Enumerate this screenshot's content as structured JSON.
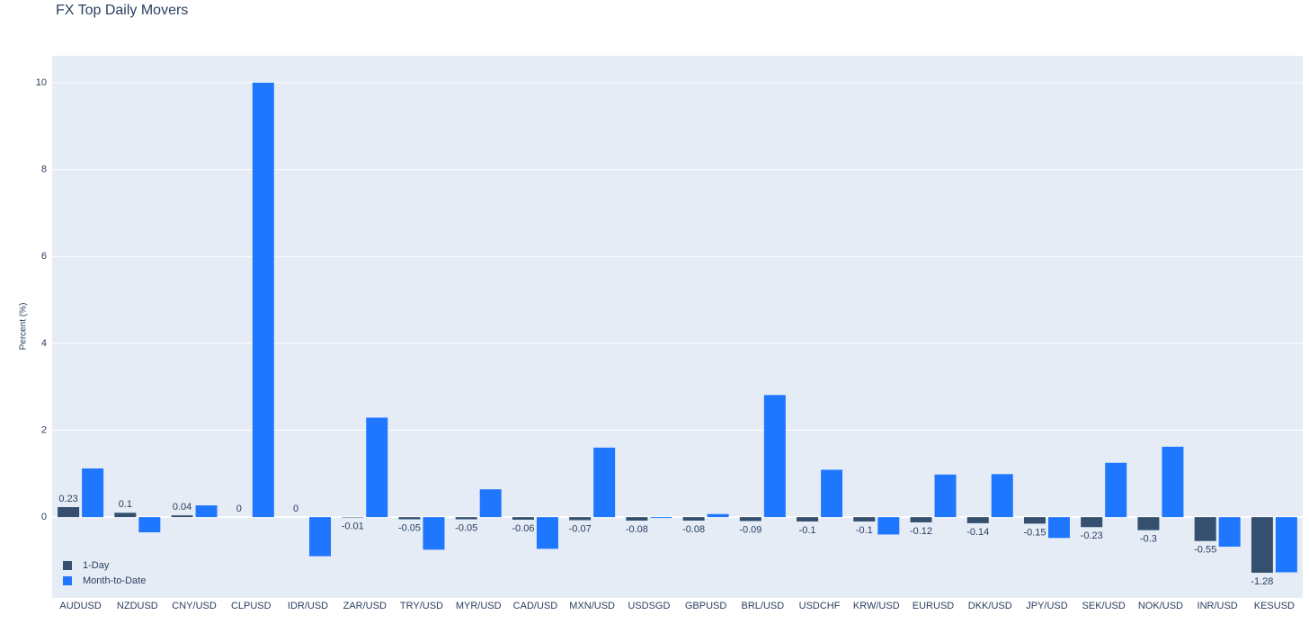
{
  "chart_data": {
    "type": "bar",
    "title": "FX Top Daily Movers",
    "y_label": "Percent (%)",
    "categories": [
      "AUDUSD",
      "NZDUSD",
      "CNY/USD",
      "CLPUSD",
      "IDR/USD",
      "ZAR/USD",
      "TRY/USD",
      "MYR/USD",
      "CAD/USD",
      "MXN/USD",
      "USDSGD",
      "GBPUSD",
      "BRL/USD",
      "USDCHF",
      "KRW/USD",
      "EURUSD",
      "DKK/USD",
      "JPY/USD",
      "SEK/USD",
      "NOK/USD",
      "INR/USD",
      "KESUSD"
    ],
    "series": [
      {
        "name": "1-Day",
        "color": "#34506e",
        "show_labels": true,
        "values": [
          0.23,
          0.1,
          0.04,
          0,
          0,
          -0.01,
          -0.05,
          -0.05,
          -0.06,
          -0.07,
          -0.08,
          -0.08,
          -0.09,
          -0.1,
          -0.1,
          -0.12,
          -0.14,
          -0.15,
          -0.23,
          -0.3,
          -0.55,
          -1.28
        ]
      },
      {
        "name": "Month-to-Date",
        "color": "#1f77ff",
        "show_labels": false,
        "values": [
          1.12,
          -0.35,
          0.27,
          10.0,
          -0.9,
          2.29,
          -0.75,
          0.64,
          -0.73,
          1.6,
          -0.02,
          0.07,
          2.81,
          1.09,
          -0.4,
          0.98,
          0.99,
          -0.48,
          1.25,
          1.62,
          -0.68,
          -1.27
        ]
      }
    ],
    "ylim": [
      -1.86,
      10.62
    ],
    "yticks": [
      0,
      2,
      4,
      6,
      8,
      10
    ],
    "grid": true,
    "legend_position": "bottom left"
  }
}
